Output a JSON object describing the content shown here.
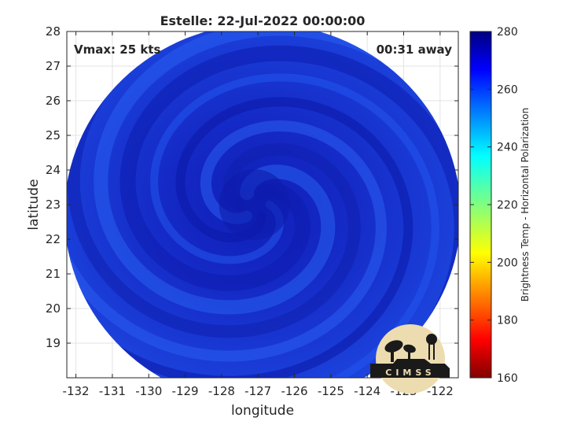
{
  "chart_data": {
    "type": "heatmap",
    "title": "Estelle: 22-Jul-2022 00:00:00",
    "xlabel": "longitude",
    "ylabel": "latitude",
    "xlim": [
      -132.25,
      -121.5
    ],
    "ylim": [
      18,
      28
    ],
    "xticks": [
      -132,
      -131,
      -130,
      -129,
      -128,
      -127,
      -126,
      -125,
      -124,
      -123,
      -122
    ],
    "yticks": [
      19,
      20,
      21,
      22,
      23,
      24,
      25,
      26,
      27,
      28
    ],
    "grid": true,
    "annotations": {
      "vmax": "Vmax: 25 kts",
      "time_offset": "00:31 away"
    },
    "center": {
      "lon": -127.1,
      "lat": 23.0
    },
    "swath_extent": {
      "lon": [
        -132.25,
        -121.5
      ],
      "lat": [
        18,
        27.3
      ]
    },
    "value_range_shown": [
      250,
      275
    ],
    "colorbar": {
      "label": "Brightness Temp - Horizontal Polarization",
      "range": [
        160,
        280
      ],
      "ticks": [
        160,
        180,
        200,
        220,
        240,
        260,
        280
      ],
      "colormap": "jet"
    },
    "logo": "CIMSS"
  }
}
